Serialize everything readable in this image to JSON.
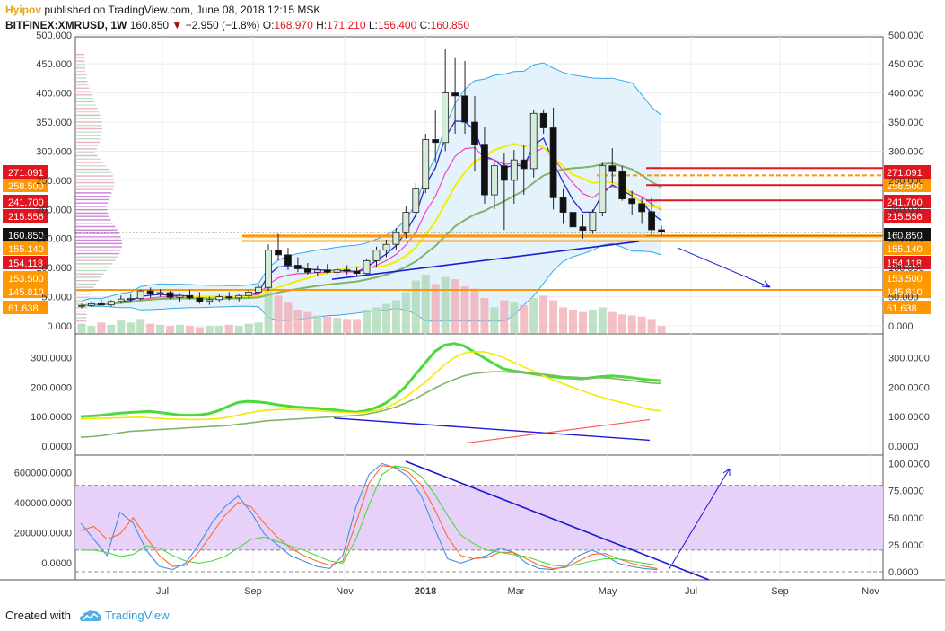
{
  "header": {
    "author": "Hyipov",
    "published": "published on TradingView.com, June 08, 2018 12:15 MSK",
    "symbol": "BITFINEX:XMRUSD",
    "interval": ", 1W",
    "last": "160.850",
    "change_arrow": "▼",
    "change": "−2.950 (−1.8%)",
    "o_label": "O:",
    "o": "168.970",
    "h_label": "H:",
    "h": "171.210",
    "l_label": "L:",
    "l": "156.400",
    "c_label": "C:",
    "c": "160.850"
  },
  "footer": {
    "created": "Created with",
    "brand": "TradingView",
    "logo_icon": "tradingview-cloud-icon"
  },
  "colors": {
    "up_candle": "#d4ecd9",
    "down_candle": "#111111",
    "red_level": "#e0151f",
    "orange_level": "#ff9800",
    "black_level": "#111111",
    "trendline": "#1a1ad6",
    "bollinger_fill": "#e3f2fb",
    "stoch_band": "#e5ccf8"
  },
  "chart_data": [
    {
      "type": "candlestick",
      "title": "BITFINEX:XMRUSD, 1W",
      "x_tick_labels": [
        "Jul",
        "Sep",
        "Nov",
        "2018",
        "Mar",
        "May",
        "Jul",
        "Sep",
        "Nov"
      ],
      "y_tick_labels": [
        "0.000",
        "50.000",
        "100.000",
        "150.000",
        "200.000",
        "250.000",
        "300.000",
        "350.000",
        "400.000",
        "450.000",
        "500.000"
      ],
      "ylim": [
        0,
        500
      ],
      "price_levels": [
        {
          "label": "271.091",
          "value": 271.091,
          "color": "red"
        },
        {
          "label": "258.500",
          "value": 258.5,
          "color": "orange"
        },
        {
          "label": "241.700",
          "value": 241.7,
          "color": "red"
        },
        {
          "label": "215.556",
          "value": 215.556,
          "color": "red"
        },
        {
          "label": "160.850",
          "value": 160.85,
          "color": "black"
        },
        {
          "label": "155.140",
          "value": 155.14,
          "color": "orange"
        },
        {
          "label": "154.118",
          "value": 154.118,
          "color": "red"
        },
        {
          "label": "153.500",
          "value": 153.5,
          "color": "orange"
        },
        {
          "label": "145.810",
          "value": 145.81,
          "color": "orange"
        },
        {
          "label": "61.638",
          "value": 61.638,
          "color": "orange"
        }
      ],
      "candles": [
        [
          34,
          38,
          30,
          35
        ],
        [
          35,
          40,
          32,
          38
        ],
        [
          38,
          45,
          35,
          36
        ],
        [
          36,
          44,
          33,
          42
        ],
        [
          42,
          52,
          38,
          46
        ],
        [
          46,
          55,
          40,
          47
        ],
        [
          47,
          62,
          44,
          60
        ],
        [
          60,
          66,
          48,
          56
        ],
        [
          56,
          63,
          50,
          57
        ],
        [
          57,
          60,
          46,
          49
        ],
        [
          49,
          56,
          40,
          52
        ],
        [
          52,
          62,
          45,
          48
        ],
        [
          48,
          58,
          38,
          42
        ],
        [
          42,
          50,
          36,
          45
        ],
        [
          45,
          54,
          40,
          50
        ],
        [
          50,
          58,
          44,
          48
        ],
        [
          48,
          55,
          42,
          52
        ],
        [
          52,
          62,
          48,
          58
        ],
        [
          58,
          70,
          54,
          66
        ],
        [
          66,
          140,
          60,
          130
        ],
        [
          130,
          158,
          112,
          122
        ],
        [
          122,
          134,
          96,
          104
        ],
        [
          104,
          118,
          92,
          98
        ],
        [
          98,
          108,
          88,
          92
        ],
        [
          92,
          104,
          86,
          96
        ],
        [
          96,
          106,
          90,
          92
        ],
        [
          92,
          102,
          86,
          96
        ],
        [
          96,
          104,
          88,
          94
        ],
        [
          94,
          100,
          84,
          90
        ],
        [
          90,
          116,
          86,
          112
        ],
        [
          112,
          136,
          100,
          130
        ],
        [
          130,
          148,
          118,
          140
        ],
        [
          140,
          168,
          130,
          160
        ],
        [
          160,
          205,
          150,
          195
        ],
        [
          195,
          245,
          185,
          235
        ],
        [
          235,
          330,
          228,
          320
        ],
        [
          320,
          370,
          280,
          315
        ],
        [
          315,
          475,
          300,
          400
        ],
        [
          400,
          460,
          330,
          395
        ],
        [
          395,
          455,
          330,
          350
        ],
        [
          350,
          395,
          265,
          312
        ],
        [
          312,
          342,
          210,
          225
        ],
        [
          225,
          280,
          200,
          275
        ],
        [
          275,
          296,
          165,
          250
        ],
        [
          250,
          302,
          210,
          285
        ],
        [
          285,
          310,
          225,
          270
        ],
        [
          270,
          370,
          255,
          365
        ],
        [
          365,
          372,
          330,
          340
        ],
        [
          340,
          375,
          200,
          220
        ],
        [
          220,
          235,
          175,
          195
        ],
        [
          195,
          210,
          160,
          170
        ],
        [
          170,
          192,
          150,
          164
        ],
        [
          164,
          200,
          158,
          195
        ],
        [
          195,
          280,
          188,
          275
        ],
        [
          275,
          305,
          245,
          265
        ],
        [
          265,
          275,
          215,
          218
        ],
        [
          218,
          232,
          190,
          210
        ],
        [
          210,
          220,
          175,
          196
        ],
        [
          196,
          220,
          155,
          165
        ],
        [
          165,
          172,
          156,
          161
        ]
      ],
      "volume": [
        8,
        6,
        9,
        7,
        11,
        9,
        12,
        8,
        7,
        6,
        7,
        6,
        5,
        6,
        6,
        7,
        6,
        8,
        9,
        42,
        32,
        26,
        20,
        18,
        15,
        14,
        13,
        12,
        12,
        20,
        22,
        25,
        28,
        35,
        45,
        50,
        42,
        48,
        46,
        40,
        38,
        30,
        22,
        28,
        26,
        24,
        30,
        32,
        28,
        22,
        20,
        18,
        20,
        22,
        18,
        16,
        15,
        14,
        12,
        6
      ]
    },
    {
      "type": "line",
      "title": "",
      "y_tick_labels": [
        "0.0000",
        "100.0000",
        "200.0000",
        "300.0000"
      ],
      "ylim": [
        0,
        350
      ],
      "series": [
        {
          "values": [
            100,
            102,
            104,
            108,
            112,
            114,
            116,
            118,
            114,
            110,
            106,
            104,
            106,
            110,
            120,
            135,
            148,
            152,
            150,
            146,
            140,
            136,
            132,
            130,
            128,
            125,
            122,
            118,
            115,
            120,
            130,
            145,
            170,
            200,
            240,
            280,
            320,
            342,
            348,
            340,
            320,
            300,
            280,
            262,
            255,
            250,
            245,
            240,
            235,
            232,
            230,
            228,
            232,
            236,
            238,
            236,
            232,
            228,
            224,
            222
          ]
        },
        {
          "values": [
            92,
            93,
            94,
            95,
            96,
            97,
            98,
            96,
            94,
            92,
            91,
            90,
            90,
            91,
            93,
            98,
            105,
            112,
            118,
            122,
            124,
            125,
            124,
            122,
            120,
            118,
            116,
            114,
            113,
            115,
            120,
            130,
            145,
            165,
            190,
            215,
            245,
            275,
            300,
            315,
            320,
            320,
            312,
            300,
            285,
            270,
            255,
            240,
            225,
            212,
            200,
            188,
            176,
            166,
            156,
            148,
            140,
            132,
            124,
            120
          ]
        },
        {
          "values": [
            30,
            32,
            35,
            40,
            45,
            50,
            52,
            54,
            56,
            58,
            60,
            62,
            64,
            66,
            68,
            70,
            74,
            78,
            82,
            86,
            88,
            90,
            92,
            94,
            96,
            98,
            100,
            102,
            104,
            108,
            114,
            122,
            132,
            145,
            160,
            178,
            196,
            212,
            226,
            238,
            246,
            250,
            252,
            252,
            250,
            248,
            246,
            244,
            240,
            236,
            234,
            232,
            232,
            232,
            230,
            226,
            222,
            218,
            214,
            212
          ]
        }
      ]
    },
    {
      "type": "line",
      "title": "",
      "y_tick_labels_left": [
        "0.0000",
        "200000.0000",
        "400000.0000",
        "600000.0000"
      ],
      "y_tick_labels_right": [
        "0.0000",
        "25.0000",
        "50.0000",
        "75.0000",
        "100.0000"
      ],
      "ylim": [
        0,
        100
      ],
      "band": [
        20,
        80
      ],
      "series": [
        {
          "values": [
            45,
            30,
            15,
            55,
            45,
            20,
            5,
            2,
            8,
            25,
            45,
            60,
            70,
            55,
            35,
            25,
            15,
            10,
            5,
            3,
            15,
            60,
            90,
            100,
            96,
            88,
            70,
            40,
            12,
            8,
            12,
            15,
            22,
            18,
            8,
            3,
            2,
            5,
            15,
            20,
            15,
            8,
            5,
            3,
            2
          ]
        },
        {
          "values": [
            38,
            42,
            30,
            35,
            50,
            32,
            15,
            5,
            6,
            18,
            35,
            52,
            64,
            60,
            45,
            32,
            22,
            15,
            10,
            6,
            10,
            45,
            82,
            98,
            97,
            92,
            80,
            58,
            32,
            15,
            12,
            13,
            18,
            18,
            12,
            6,
            3,
            4,
            10,
            16,
            17,
            12,
            8,
            5,
            3
          ]
        },
        {
          "values": [
            20,
            20,
            18,
            14,
            16,
            24,
            22,
            15,
            10,
            8,
            10,
            14,
            22,
            30,
            32,
            28,
            24,
            20,
            15,
            10,
            8,
            30,
            62,
            90,
            98,
            96,
            88,
            72,
            52,
            34,
            26,
            20,
            18,
            16,
            14,
            10,
            6,
            5,
            7,
            10,
            12,
            12,
            10,
            8,
            6
          ]
        }
      ]
    }
  ]
}
